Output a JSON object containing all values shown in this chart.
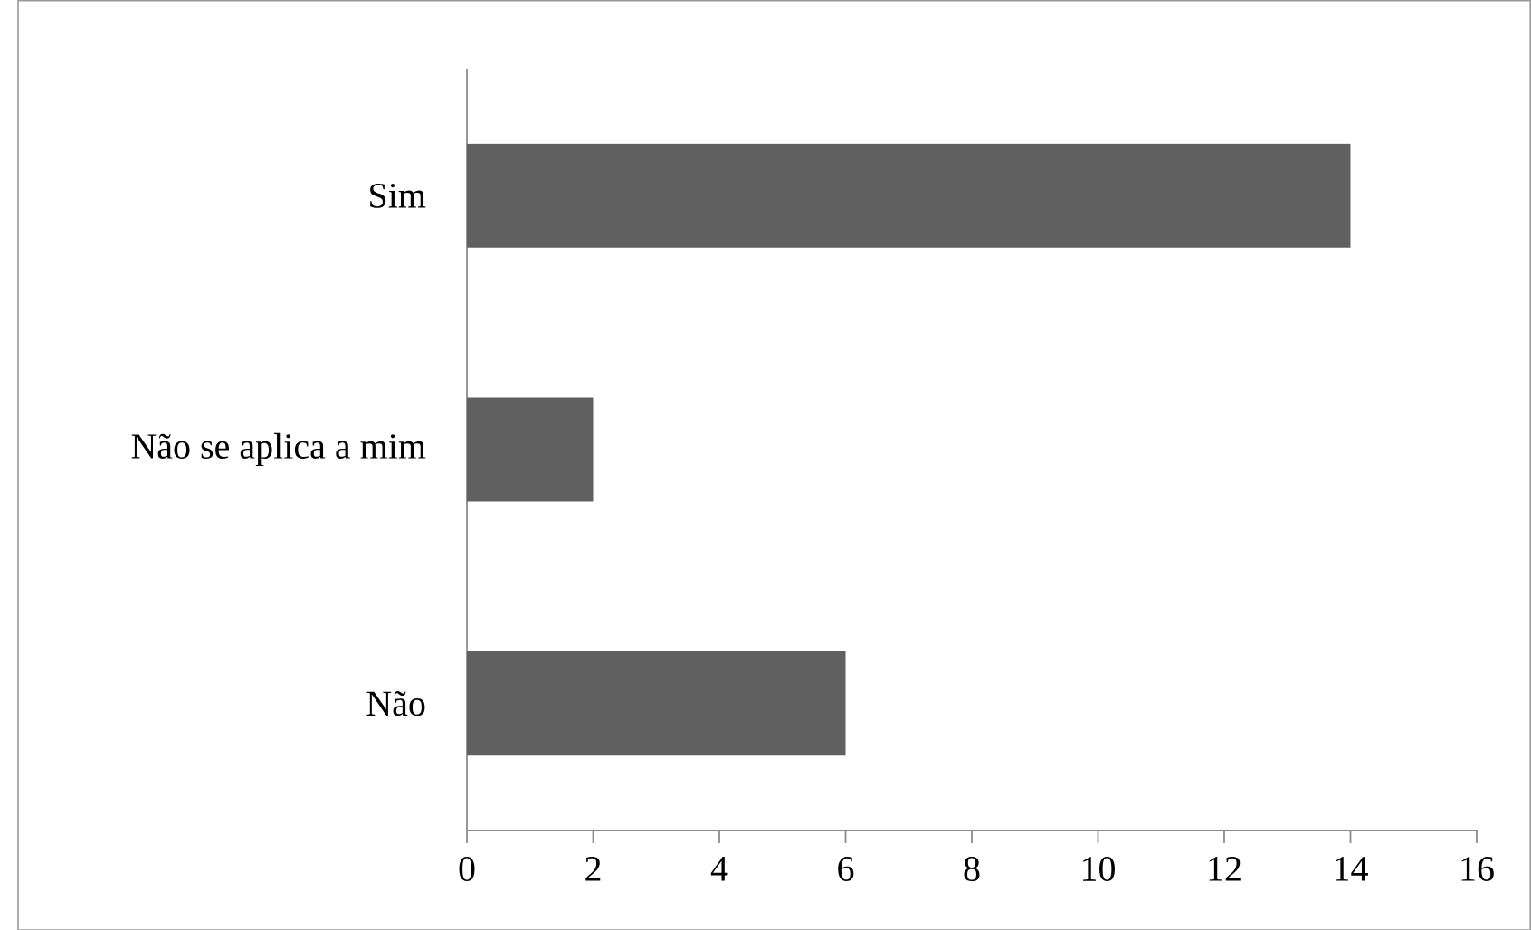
{
  "chart_data": {
    "type": "bar",
    "orientation": "horizontal",
    "categories": [
      "Sim",
      "Não se aplica a mim",
      "Não"
    ],
    "values": [
      14,
      2,
      6
    ],
    "color": "#606060",
    "xlim": [
      0,
      16
    ],
    "xticks": [
      0,
      2,
      4,
      6,
      8,
      10,
      12,
      14,
      16
    ],
    "grid": false
  }
}
